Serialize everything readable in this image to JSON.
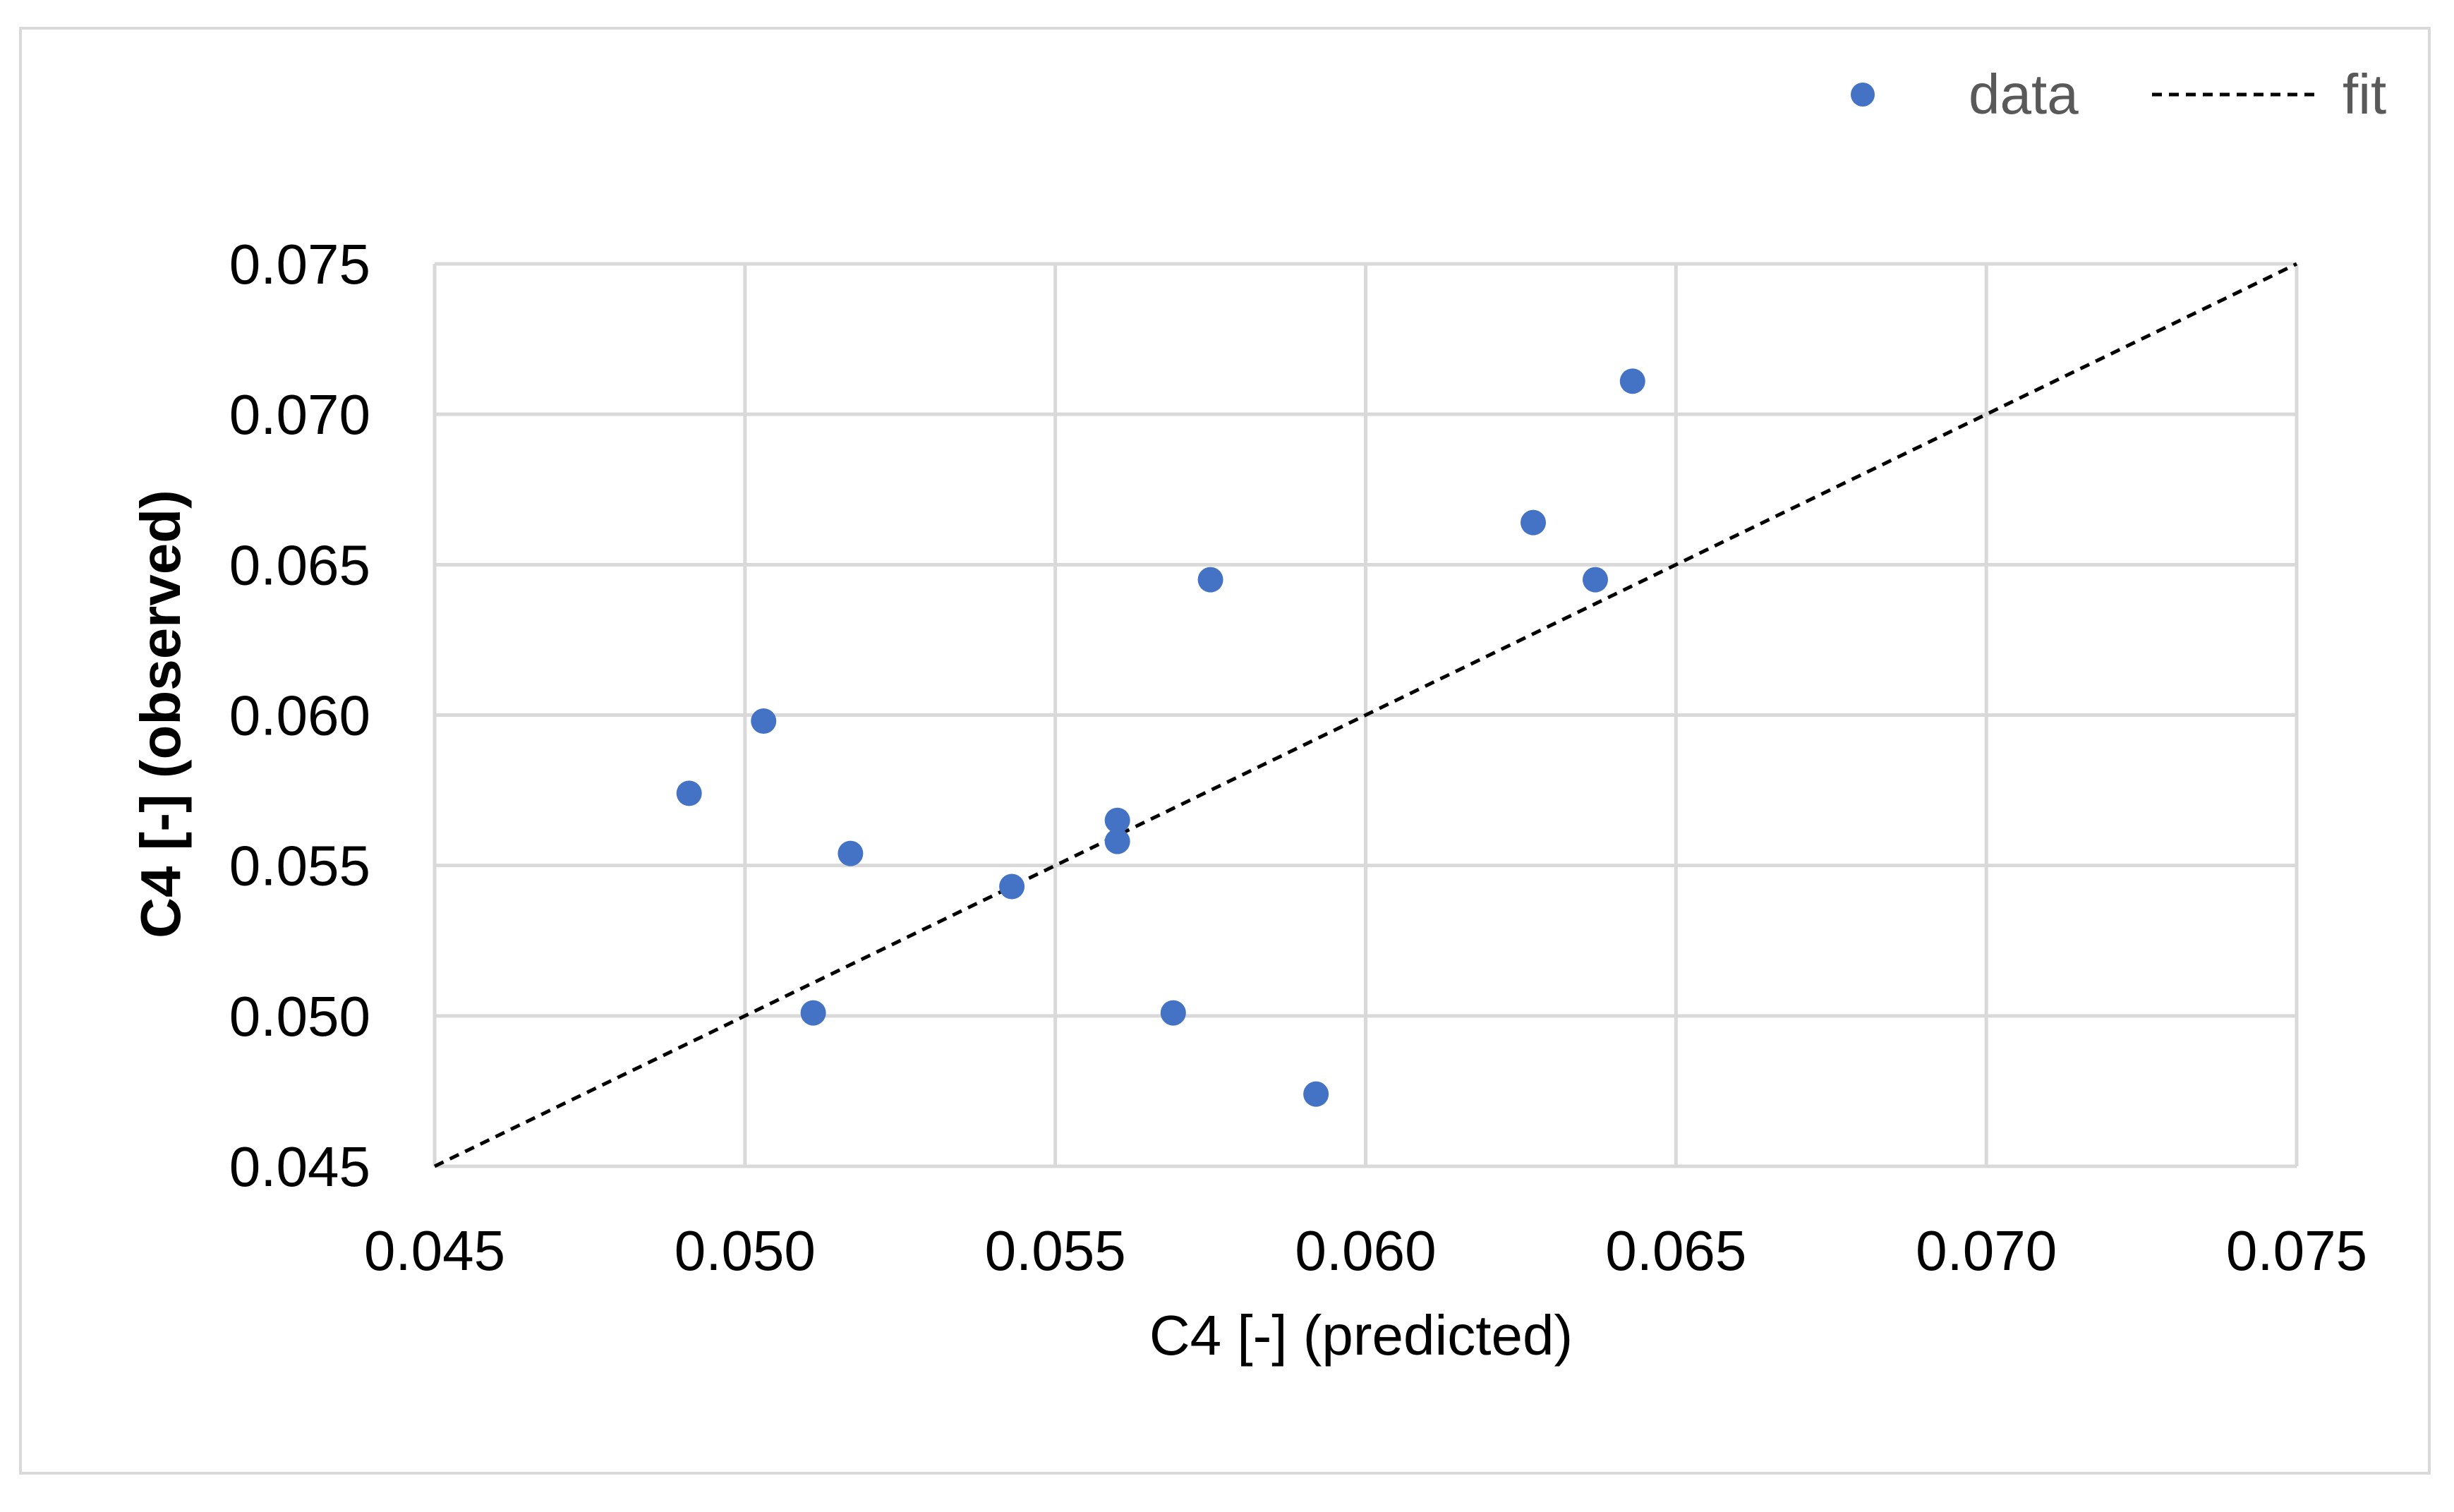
{
  "chart_data": {
    "type": "scatter",
    "title": "",
    "xlabel": "C4 [-] (predicted)",
    "ylabel": "C4 [-] (observed)",
    "xlim": [
      0.045,
      0.075
    ],
    "ylim": [
      0.045,
      0.075
    ],
    "x_ticks": [
      "0.045",
      "0.050",
      "0.055",
      "0.060",
      "0.065",
      "0.070",
      "0.075"
    ],
    "y_ticks": [
      "0.045",
      "0.050",
      "0.055",
      "0.060",
      "0.065",
      "0.070",
      "0.075"
    ],
    "grid": true,
    "legend_position": "top-right",
    "series": [
      {
        "name": "data",
        "kind": "scatter",
        "color": "#4472c4",
        "points": [
          {
            "x": 0.0491,
            "y": 0.0574
          },
          {
            "x": 0.0503,
            "y": 0.0598
          },
          {
            "x": 0.0511,
            "y": 0.0501
          },
          {
            "x": 0.0517,
            "y": 0.0554
          },
          {
            "x": 0.0543,
            "y": 0.0543
          },
          {
            "x": 0.056,
            "y": 0.0565
          },
          {
            "x": 0.056,
            "y": 0.0558
          },
          {
            "x": 0.0569,
            "y": 0.0501
          },
          {
            "x": 0.0575,
            "y": 0.0645
          },
          {
            "x": 0.0592,
            "y": 0.0474
          },
          {
            "x": 0.0627,
            "y": 0.0664
          },
          {
            "x": 0.0637,
            "y": 0.0645
          },
          {
            "x": 0.0643,
            "y": 0.0711
          }
        ]
      },
      {
        "name": "fit",
        "kind": "line",
        "style": "dashed",
        "color": "#000000",
        "points": [
          {
            "x": 0.045,
            "y": 0.045
          },
          {
            "x": 0.075,
            "y": 0.075
          }
        ]
      }
    ]
  }
}
